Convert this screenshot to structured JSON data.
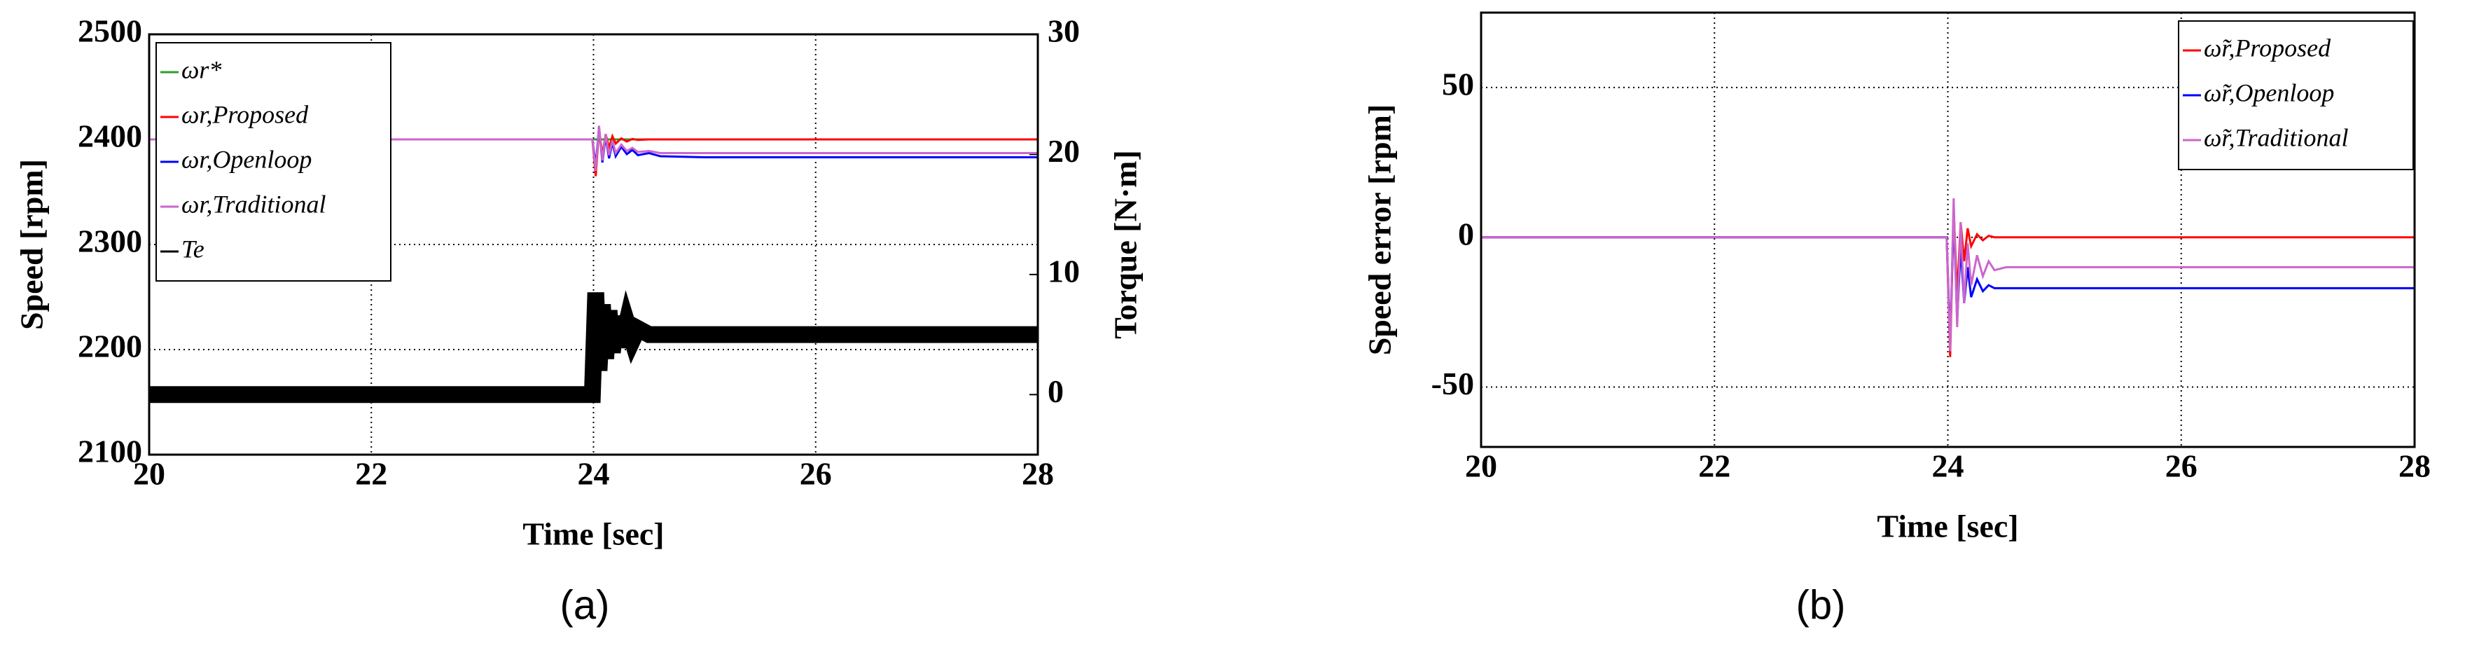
{
  "chart_data": [
    {
      "type": "line",
      "caption": "(a)",
      "xlabel": "Time [sec]",
      "ylabel": "Speed [rpm]",
      "y2label": "Torque [N·m]",
      "x": [
        20,
        21,
        22,
        23,
        23.99,
        24.02,
        24.05,
        24.08,
        24.11,
        24.14,
        24.17,
        24.2,
        24.25,
        24.3,
        24.35,
        24.4,
        24.5,
        24.6,
        25,
        26,
        27,
        28
      ],
      "xlim": [
        20,
        28
      ],
      "xticks": [
        20,
        22,
        24,
        26,
        28
      ],
      "ylim": [
        2100,
        2500
      ],
      "yticks": [
        2100,
        2200,
        2300,
        2400,
        2500
      ],
      "y2lim": [
        -5,
        30
      ],
      "y2ticks": [
        0,
        10,
        20,
        30
      ],
      "grid": true,
      "legend": "upper left",
      "series": [
        {
          "name": "ωr*",
          "color": "#2ca02c",
          "values": [
            2400,
            2400,
            2400,
            2400,
            2400,
            2400,
            2400,
            2400,
            2400,
            2400,
            2400,
            2400,
            2400,
            2400,
            2400,
            2400,
            2400,
            2400,
            2400,
            2400,
            2400,
            2400
          ]
        },
        {
          "name": "ωr,Proposed",
          "color": "#ff0000",
          "values": [
            2400,
            2400,
            2400,
            2400,
            2400,
            2365,
            2410,
            2385,
            2405,
            2392,
            2403,
            2396,
            2401,
            2398,
            2400.5,
            2399.5,
            2400,
            2400,
            2400,
            2400,
            2400,
            2400
          ]
        },
        {
          "name": "ωr,Openloop",
          "color": "#0000ff",
          "values": [
            2400,
            2400,
            2400,
            2400,
            2400,
            2375,
            2412,
            2378,
            2403,
            2382,
            2397,
            2384,
            2393,
            2386,
            2390,
            2385,
            2387,
            2384,
            2383,
            2383,
            2383,
            2383
          ]
        },
        {
          "name": "ωr,Traditional",
          "color": "#cc66cc",
          "values": [
            2400,
            2400,
            2400,
            2400,
            2400,
            2370,
            2413,
            2380,
            2405,
            2385,
            2399,
            2387,
            2395,
            2389,
            2392,
            2388,
            2389,
            2387,
            2387,
            2387,
            2387,
            2387
          ]
        },
        {
          "name": "Te",
          "color": "#000000",
          "axis": "y2",
          "values": [
            0,
            0,
            0,
            0,
            0,
            8.5,
            2,
            7.5,
            3,
            7,
            3.5,
            6.5,
            4,
            6,
            4.5,
            5.5,
            5,
            5,
            5,
            5,
            5,
            5
          ]
        }
      ]
    },
    {
      "type": "line",
      "caption": "(b)",
      "xlabel": "Time [sec]",
      "ylabel": "Speed error [rpm]",
      "x": [
        20,
        21,
        22,
        23,
        23.99,
        24.02,
        24.05,
        24.08,
        24.11,
        24.14,
        24.17,
        24.2,
        24.25,
        24.3,
        24.35,
        24.4,
        24.5,
        24.6,
        25,
        26,
        27,
        28
      ],
      "xlim": [
        20,
        28
      ],
      "xticks": [
        20,
        22,
        24,
        26,
        28
      ],
      "ylim": [
        -70,
        75
      ],
      "yticks": [
        -50,
        0,
        50
      ],
      "grid": true,
      "legend": "upper right",
      "series": [
        {
          "name": "ω̃r,Proposed",
          "color": "#ff0000",
          "values": [
            0,
            0,
            0,
            0,
            0,
            -40,
            10,
            -20,
            5,
            -8,
            3,
            -3,
            1,
            -1,
            0.5,
            0,
            0,
            0,
            0,
            0,
            0,
            0
          ]
        },
        {
          "name": "ω̃r,Openloop",
          "color": "#0000ff",
          "values": [
            0,
            0,
            0,
            0,
            0,
            -35,
            8,
            -28,
            -3,
            -22,
            -10,
            -20,
            -14,
            -18,
            -16,
            -17,
            -17,
            -17,
            -17,
            -17,
            -17,
            -17
          ]
        },
        {
          "name": "ω̃r,Traditional",
          "color": "#cc66cc",
          "values": [
            0,
            0,
            0,
            0,
            0,
            -38,
            13,
            -30,
            5,
            -22,
            -2,
            -16,
            -6,
            -13,
            -8,
            -11,
            -10,
            -10,
            -10,
            -10,
            -10,
            -10
          ]
        }
      ]
    }
  ]
}
